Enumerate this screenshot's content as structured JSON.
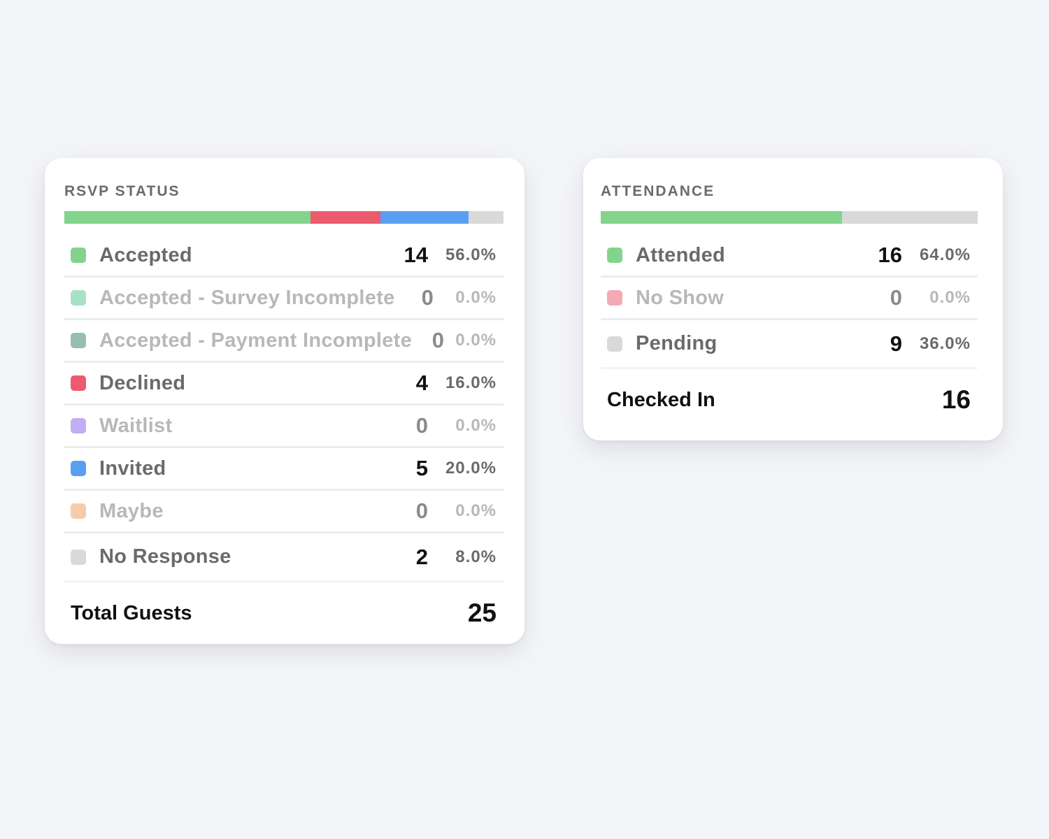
{
  "rsvp": {
    "title": "RSVP STATUS",
    "total_label": "Total Guests",
    "total_value": "25",
    "items": [
      {
        "label": "Accepted",
        "count": "14",
        "pct": "56.0%",
        "color": "#82d48c",
        "fraction": 0.56
      },
      {
        "label": "Accepted - Survey Incomplete",
        "count": "0",
        "pct": "0.0%",
        "color": "#a9e0c8",
        "fraction": 0
      },
      {
        "label": "Accepted - Payment Incomplete",
        "count": "0",
        "pct": "0.0%",
        "color": "#98bfae",
        "fraction": 0
      },
      {
        "label": "Declined",
        "count": "4",
        "pct": "16.0%",
        "color": "#ec5a6e",
        "fraction": 0.16
      },
      {
        "label": "Waitlist",
        "count": "0",
        "pct": "0.0%",
        "color": "#c3adf5",
        "fraction": 0
      },
      {
        "label": "Invited",
        "count": "5",
        "pct": "20.0%",
        "color": "#5a9ef2",
        "fraction": 0.2
      },
      {
        "label": "Maybe",
        "count": "0",
        "pct": "0.0%",
        "color": "#f8cba8",
        "fraction": 0
      },
      {
        "label": "No Response",
        "count": "2",
        "pct": "8.0%",
        "color": "#d9d9d9",
        "fraction": 0.08
      }
    ]
  },
  "attendance": {
    "title": "ATTENDANCE",
    "total_label": "Checked In",
    "total_value": "16",
    "items": [
      {
        "label": "Attended",
        "count": "16",
        "pct": "64.0%",
        "color": "#82d48c",
        "fraction": 0.64
      },
      {
        "label": "No Show",
        "count": "0",
        "pct": "0.0%",
        "color": "#f4a9b4",
        "fraction": 0
      },
      {
        "label": "Pending",
        "count": "9",
        "pct": "36.0%",
        "color": "#d9d9d9",
        "fraction": 0.36
      }
    ]
  }
}
